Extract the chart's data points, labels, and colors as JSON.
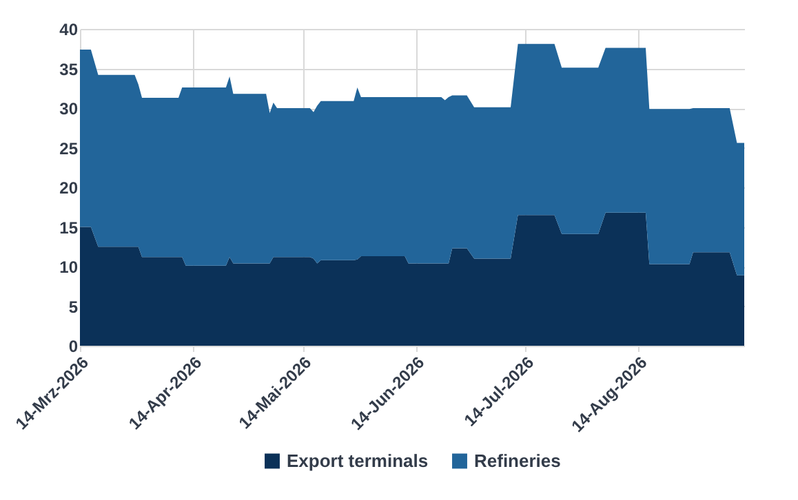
{
  "chart_data": {
    "type": "area",
    "stacked": true,
    "x": [
      "2026-03-14",
      "2026-03-17",
      "2026-03-19",
      "2026-03-29",
      "2026-03-30",
      "2026-03-31",
      "2026-04-10",
      "2026-04-11",
      "2026-04-12",
      "2026-04-23",
      "2026-04-24",
      "2026-04-25",
      "2026-05-04",
      "2026-05-05",
      "2026-05-06",
      "2026-05-07",
      "2026-05-16",
      "2026-05-17",
      "2026-05-18",
      "2026-05-19",
      "2026-05-28",
      "2026-05-29",
      "2026-05-30",
      "2026-06-11",
      "2026-06-12",
      "2026-06-21",
      "2026-06-22",
      "2026-06-23",
      "2026-06-24",
      "2026-06-28",
      "2026-06-30",
      "2026-07-10",
      "2026-07-12",
      "2026-07-22",
      "2026-07-24",
      "2026-08-03",
      "2026-08-05",
      "2026-08-16",
      "2026-08-17",
      "2026-08-28",
      "2026-08-29",
      "2026-09-08",
      "2026-09-10",
      "2026-09-12"
    ],
    "series": [
      {
        "name": "Export terminals",
        "color": "#0b3158",
        "values": [
          15.0,
          15.0,
          12.5,
          12.5,
          12.5,
          11.2,
          11.2,
          11.2,
          10.1,
          10.1,
          11.2,
          10.4,
          10.4,
          10.4,
          11.2,
          11.2,
          11.2,
          11.0,
          10.4,
          10.8,
          10.8,
          10.9,
          11.3,
          11.3,
          10.4,
          10.4,
          10.4,
          10.4,
          12.3,
          12.3,
          11.0,
          11.0,
          16.5,
          16.5,
          14.1,
          14.1,
          16.8,
          16.8,
          10.3,
          10.3,
          11.8,
          11.8,
          8.9,
          8.9
        ]
      },
      {
        "name": "Refineries",
        "color": "#22659a",
        "values": [
          22.4,
          22.4,
          21.7,
          21.7,
          20.5,
          20.1,
          20.1,
          21.4,
          22.5,
          22.5,
          22.8,
          21.4,
          21.4,
          19.0,
          19.5,
          18.8,
          18.8,
          18.5,
          19.9,
          20.1,
          20.1,
          21.7,
          20.1,
          20.1,
          21.0,
          21.0,
          20.6,
          21.0,
          19.3,
          19.3,
          19.1,
          19.1,
          21.6,
          21.6,
          21.0,
          21.0,
          20.8,
          20.8,
          19.6,
          19.6,
          18.2,
          18.2,
          16.7,
          16.7
        ]
      }
    ],
    "xlim": [
      "2026-03-14",
      "2026-09-12"
    ],
    "xticks": [
      {
        "value": "2026-03-14",
        "label": "14-Mrz-2026"
      },
      {
        "value": "2026-04-14",
        "label": "14-Apr-2026"
      },
      {
        "value": "2026-05-14",
        "label": "14-Mai-2026"
      },
      {
        "value": "2026-06-14",
        "label": "14-Jun-2026"
      },
      {
        "value": "2026-07-14",
        "label": "14-Jul-2026"
      },
      {
        "value": "2026-08-14",
        "label": "14-Aug-2026"
      }
    ],
    "ylim": [
      0,
      40
    ],
    "yticks": [
      0,
      5,
      10,
      15,
      20,
      25,
      30,
      35,
      40
    ],
    "grid": true,
    "legend": "bottom"
  }
}
